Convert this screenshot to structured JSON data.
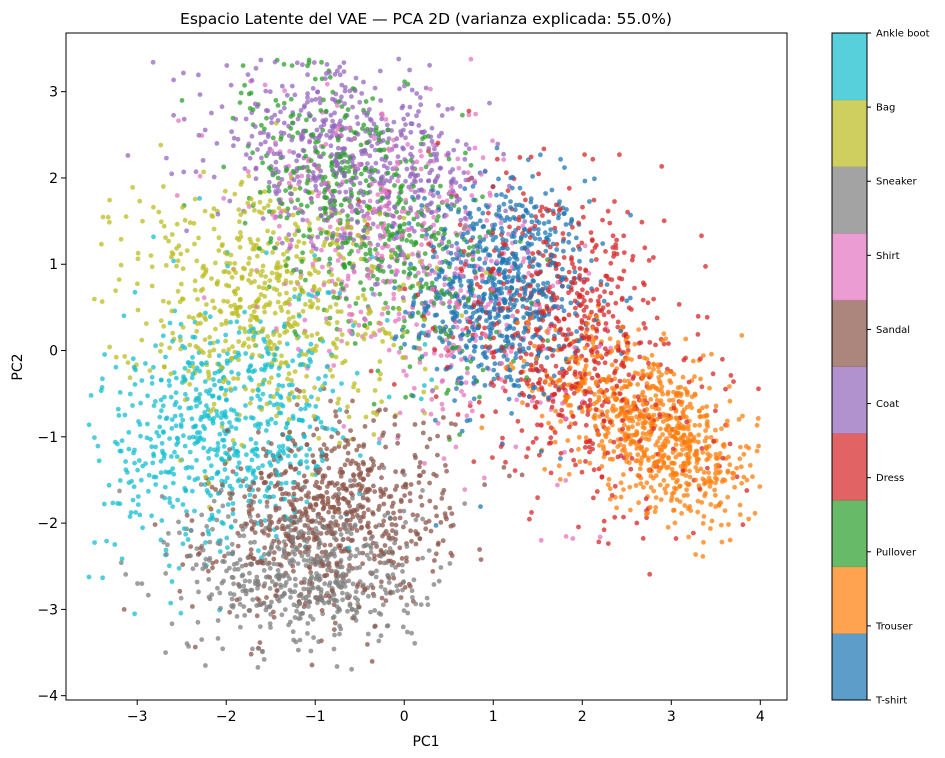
{
  "chart_data": {
    "type": "scatter",
    "title": "Espacio Latente del VAE — PCA 2D (varianza explicada: 55.0%)",
    "xlabel": "PC1",
    "ylabel": "PC2",
    "xlim": [
      -3.8,
      4.3
    ],
    "ylim": [
      -4.05,
      3.68
    ],
    "xticks": [
      -3,
      -2,
      -1,
      0,
      1,
      2,
      3,
      4
    ],
    "yticks": [
      -4,
      -3,
      -2,
      -1,
      0,
      1,
      2,
      3
    ],
    "xtick_labels": [
      "−3",
      "−2",
      "−1",
      "0",
      "1",
      "2",
      "3",
      "4"
    ],
    "ytick_labels": [
      "−4",
      "−3",
      "−2",
      "−1",
      "0",
      "1",
      "2",
      "3"
    ],
    "grid": false,
    "colorbar": {
      "orientation": "vertical",
      "placement": "right",
      "labels": [
        "T-shirt",
        "Trouser",
        "Pullover",
        "Dress",
        "Coat",
        "Sandal",
        "Shirt",
        "Sneaker",
        "Bag",
        "Ankle boot"
      ]
    },
    "series": [
      {
        "name": "T-shirt",
        "color": "#1f77b4",
        "cx": 1.1,
        "cy": 0.7,
        "sx": 0.48,
        "sy": 0.65,
        "rho": 0.0,
        "n": 700
      },
      {
        "name": "Trouser",
        "color": "#ff7f0e",
        "cx": 2.8,
        "cy": -0.9,
        "sx": 0.6,
        "sy": 0.55,
        "rho": -0.55,
        "n": 800
      },
      {
        "name": "Pullover",
        "color": "#2ca02c",
        "cx": -0.4,
        "cy": 1.6,
        "sx": 0.7,
        "sy": 0.9,
        "rho": -0.55,
        "n": 560
      },
      {
        "name": "Dress",
        "color": "#d62728",
        "cx": 1.9,
        "cy": 0.1,
        "sx": 0.75,
        "sy": 0.95,
        "rho": -0.4,
        "n": 700
      },
      {
        "name": "Coat",
        "color": "#9467bd",
        "cx": -0.6,
        "cy": 2.2,
        "sx": 0.75,
        "sy": 0.55,
        "rho": -0.3,
        "n": 600
      },
      {
        "name": "Sandal",
        "color": "#8c564b",
        "cx": -0.8,
        "cy": -1.9,
        "sx": 0.65,
        "sy": 0.55,
        "rho": 0.15,
        "n": 720
      },
      {
        "name": "Shirt",
        "color": "#e377c2",
        "cx": 0.1,
        "cy": 1.0,
        "sx": 0.9,
        "sy": 0.95,
        "rho": -0.5,
        "n": 520
      },
      {
        "name": "Sneaker",
        "color": "#7f7f7f",
        "cx": -1.1,
        "cy": -2.6,
        "sx": 0.65,
        "sy": 0.45,
        "rho": 0.0,
        "n": 560
      },
      {
        "name": "Bag",
        "color": "#bcbd22",
        "cx": -1.6,
        "cy": 0.6,
        "sx": 0.85,
        "sy": 0.7,
        "rho": -0.1,
        "n": 620
      },
      {
        "name": "Ankle boot",
        "color": "#17becf",
        "cx": -2.0,
        "cy": -0.9,
        "sx": 0.7,
        "sy": 0.75,
        "rho": 0.25,
        "n": 660
      }
    ]
  }
}
